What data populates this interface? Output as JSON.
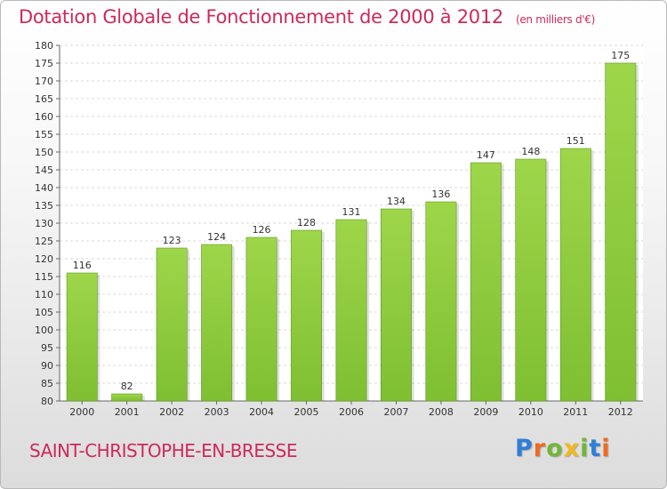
{
  "header": {
    "title": "Dotation Globale de Fonctionnement de 2000 à 2012",
    "unit": "(en milliers d'€)"
  },
  "footer": {
    "commune": "SAINT-CHRISTOPHE-EN-BRESSE",
    "logo_letters": [
      "P",
      "r",
      "o",
      "x",
      "i",
      "t",
      "i"
    ],
    "logo_colors": [
      "#2f7fd6",
      "#ef6b1f",
      "#73b637",
      "#f2b81e",
      "#73b637",
      "#2f7fd6",
      "#ef6b1f"
    ]
  },
  "chart_data": {
    "type": "bar",
    "title": "Dotation Globale de Fonctionnement de 2000 à 2012",
    "ylabel": "",
    "xlabel": "",
    "categories": [
      "2000",
      "2001",
      "2002",
      "2003",
      "2004",
      "2005",
      "2006",
      "2007",
      "2008",
      "2009",
      "2010",
      "2011",
      "2012"
    ],
    "values": [
      116,
      82,
      123,
      124,
      126,
      128,
      131,
      134,
      136,
      147,
      148,
      151,
      175
    ],
    "ylim": [
      80,
      180
    ],
    "yticks": [
      80,
      85,
      90,
      95,
      100,
      105,
      110,
      115,
      120,
      125,
      130,
      135,
      140,
      145,
      150,
      155,
      160,
      165,
      170,
      175,
      180
    ],
    "grid": true,
    "bar_color": "#7fbf32",
    "bar_color_light": "#9ed64a"
  }
}
